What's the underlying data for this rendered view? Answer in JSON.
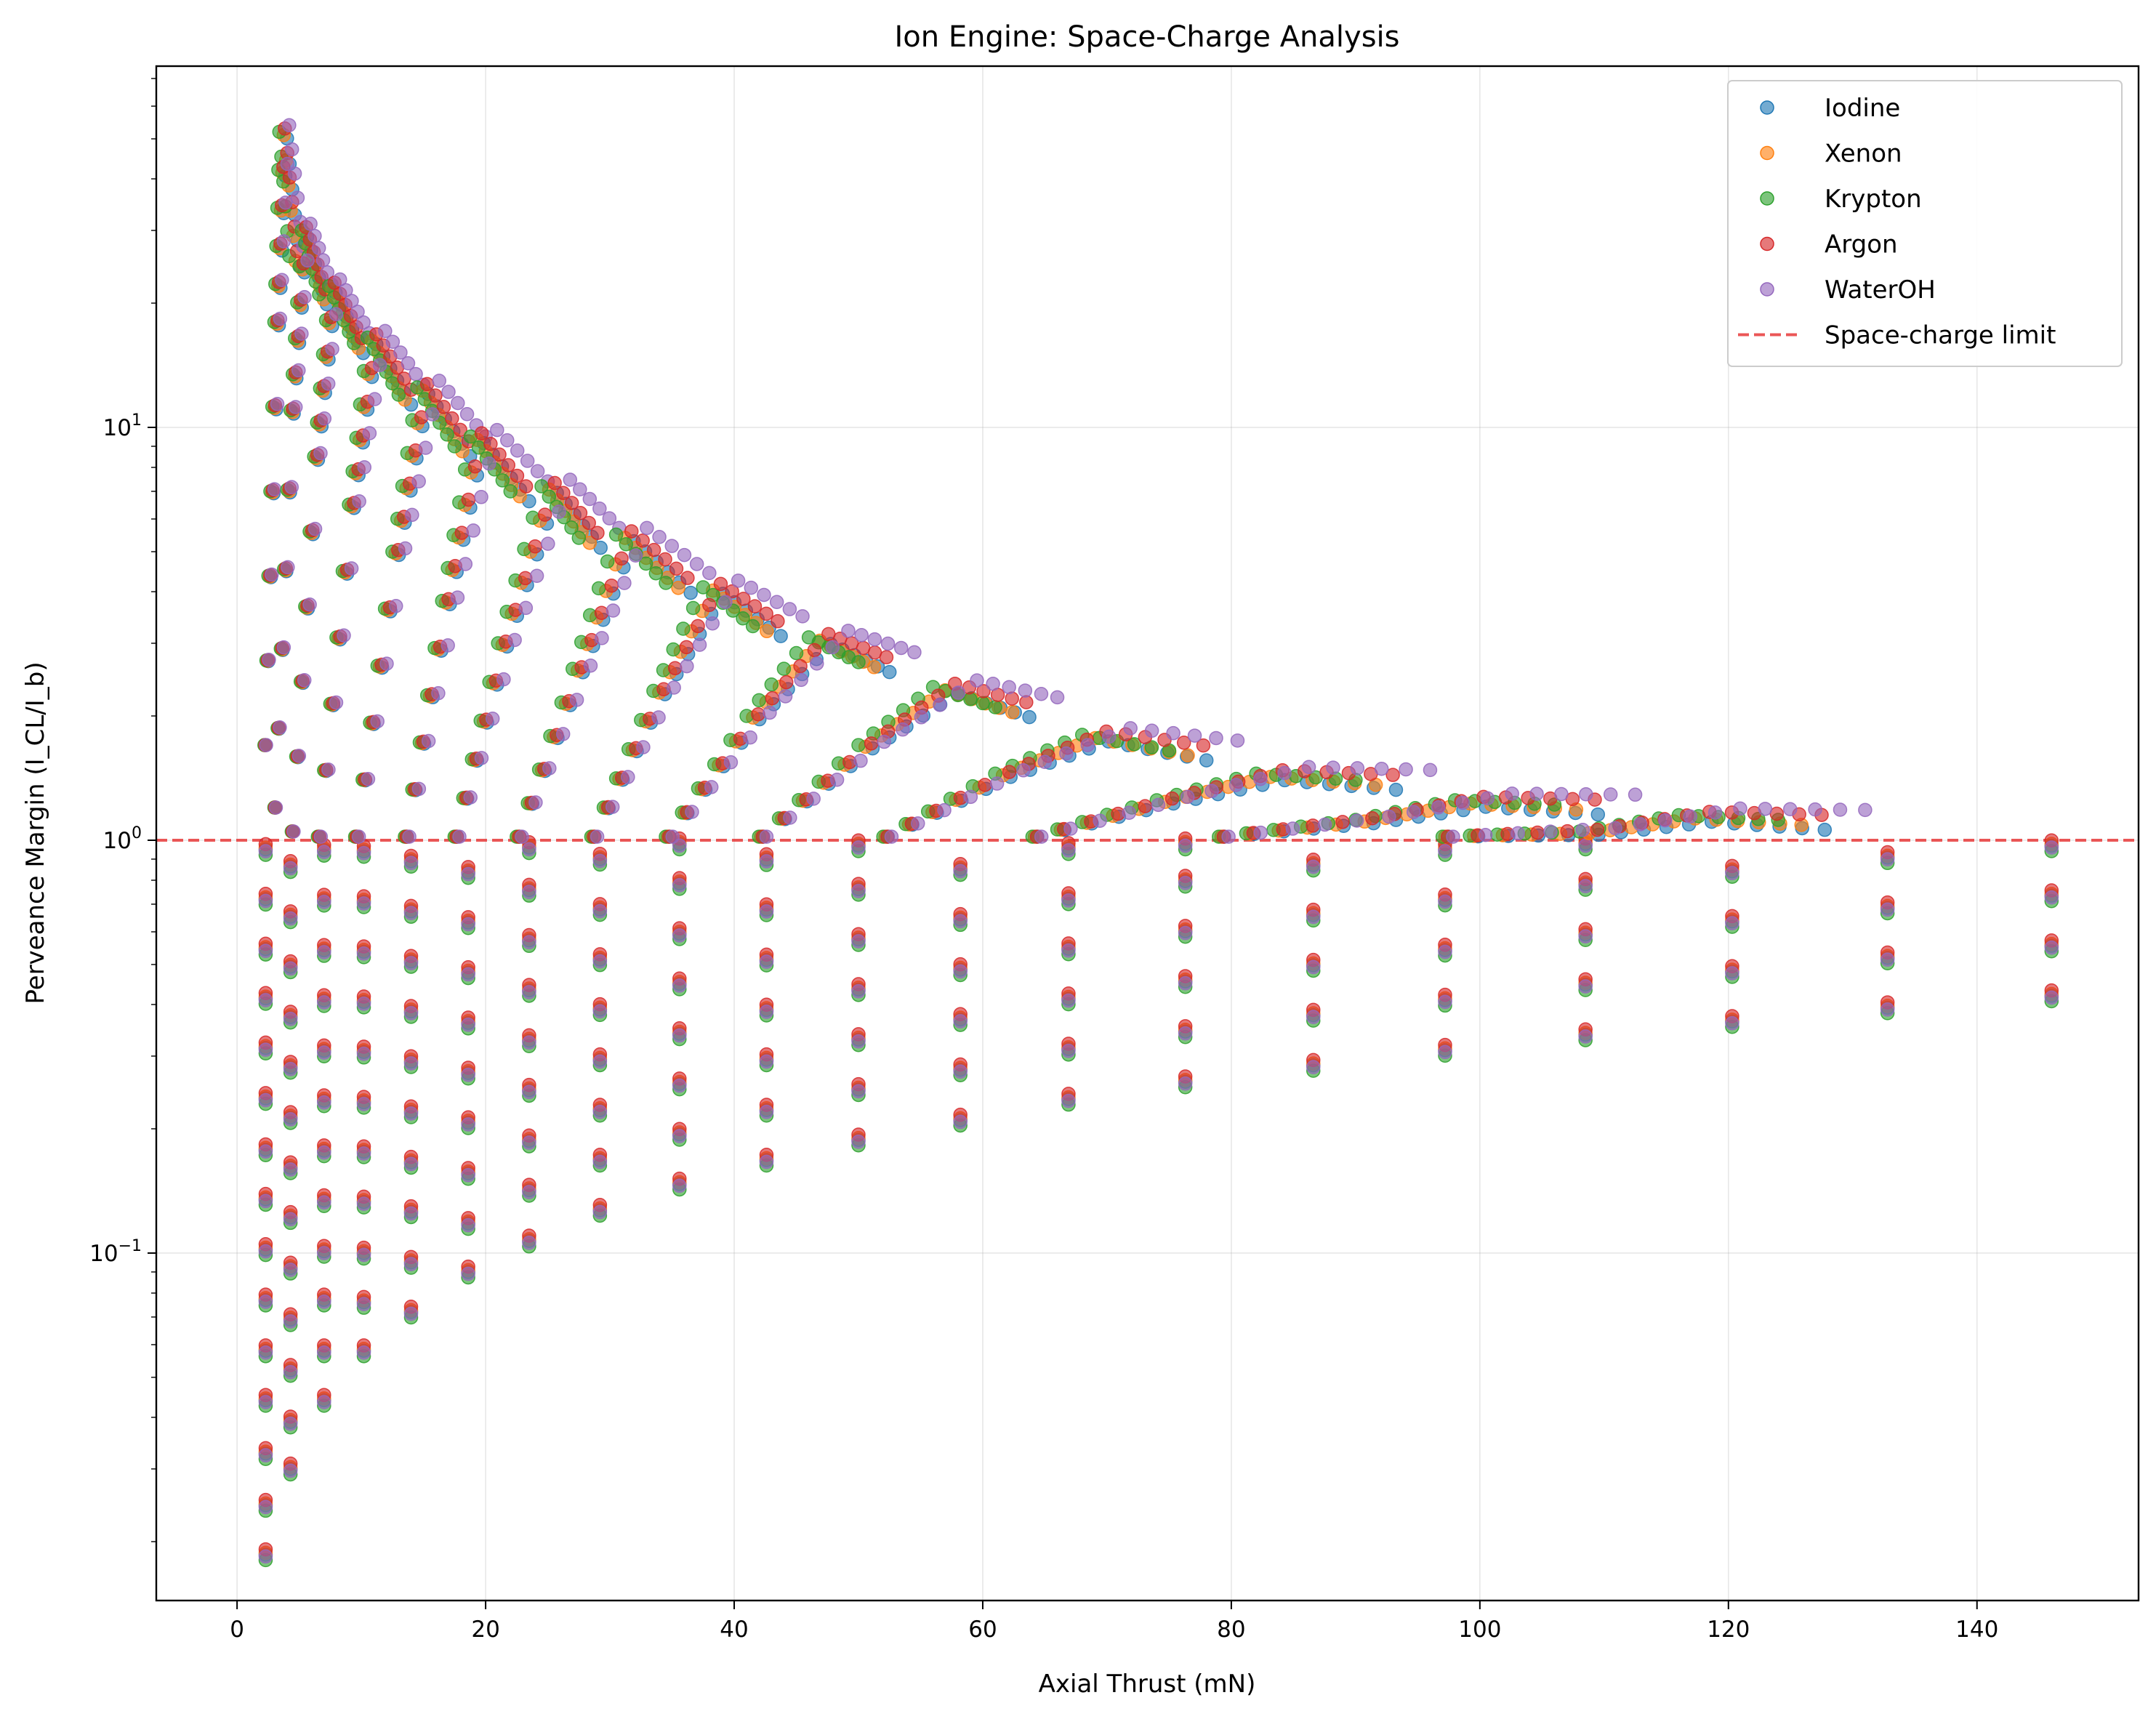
{
  "chart_data": {
    "type": "scatter",
    "title": "Ion Engine: Space-Charge Analysis",
    "xlabel": "Axial Thrust (mN)",
    "ylabel": "Perveance Margin (I_CL/I_b)",
    "xlim": [
      -6.5,
      153
    ],
    "ylim": [
      0.0144,
      75
    ],
    "yscale": "log",
    "grid": true,
    "legend_position": "top-right",
    "x_ticks": [
      0,
      20,
      40,
      60,
      80,
      100,
      120,
      140
    ],
    "y_ticks": [
      {
        "value": 0.1,
        "base": "10",
        "exp": "−1"
      },
      {
        "value": 1,
        "base": "10",
        "exp": "0"
      },
      {
        "value": 10,
        "base": "10",
        "exp": "1"
      }
    ],
    "reference_line": {
      "name": "Space-charge limit",
      "y": 1.0,
      "color": "#e8393a",
      "style": "dashed"
    },
    "series": [
      {
        "name": "Iodine",
        "color": "#1f77b4"
      },
      {
        "name": "Xenon",
        "color": "#ff7f0e"
      },
      {
        "name": "Krypton",
        "color": "#2ca02c"
      },
      {
        "name": "Argon",
        "color": "#d62728"
      },
      {
        "name": "WaterOH",
        "color": "#9467bd"
      }
    ],
    "thrust_columns": [
      2.3,
      4.3,
      7.0,
      10.2,
      14.0,
      18.6,
      23.5,
      29.2,
      35.6,
      42.6,
      50.0,
      58.2,
      66.9,
      76.3,
      86.6,
      97.2,
      108.5,
      120.3,
      132.8,
      146.0
    ],
    "columns": [
      {
        "x": 2.3,
        "y": [
          0.0186,
          0.0245,
          0.0327,
          0.044,
          0.058,
          0.077,
          0.102,
          0.135,
          0.178,
          0.237,
          0.314,
          0.414,
          0.545,
          0.72,
          0.95
        ]
      },
      {
        "x": 4.3,
        "y": [
          0.03,
          0.039,
          0.052,
          0.069,
          0.092,
          0.122,
          0.161,
          0.213,
          0.282,
          0.373,
          0.494,
          0.653,
          0.864
        ]
      },
      {
        "x": 7.0,
        "y": [
          0.044,
          0.058,
          0.077,
          0.101,
          0.134,
          0.177,
          0.234,
          0.309,
          0.409,
          0.541,
          0.716,
          0.946
        ]
      },
      {
        "x": 10.2,
        "y": [
          0.058,
          0.076,
          0.1,
          0.133,
          0.176,
          0.232,
          0.307,
          0.406,
          0.537,
          0.71,
          0.94
        ]
      },
      {
        "x": 14.0,
        "y": [
          0.072,
          0.095,
          0.126,
          0.166,
          0.22,
          0.291,
          0.385,
          0.509,
          0.673,
          0.89
        ]
      },
      {
        "x": 18.6,
        "y": [
          0.09,
          0.118,
          0.156,
          0.207,
          0.273,
          0.361,
          0.478,
          0.632,
          0.836
        ]
      },
      {
        "x": 23.5,
        "y": [
          0.107,
          0.142,
          0.187,
          0.248,
          0.327,
          0.433,
          0.572,
          0.757,
          0.96
        ]
      },
      {
        "x": 29.2,
        "y": [
          0.127,
          0.168,
          0.222,
          0.294,
          0.389,
          0.514,
          0.68,
          0.9
        ]
      },
      {
        "x": 35.6,
        "y": [
          0.147,
          0.194,
          0.257,
          0.34,
          0.449,
          0.594,
          0.786,
          0.98
        ]
      },
      {
        "x": 42.6,
        "y": [
          0.168,
          0.222,
          0.294,
          0.388,
          0.513,
          0.679,
          0.898
        ]
      },
      {
        "x": 50.0,
        "y": [
          0.188,
          0.249,
          0.329,
          0.435,
          0.575,
          0.761,
          0.97
        ]
      },
      {
        "x": 58.2,
        "y": [
          0.21,
          0.278,
          0.368,
          0.486,
          0.643,
          0.85
        ]
      },
      {
        "x": 66.9,
        "y": [
          0.236,
          0.312,
          0.413,
          0.546,
          0.722,
          0.955
        ]
      },
      {
        "x": 76.3,
        "y": [
          0.26,
          0.344,
          0.455,
          0.602,
          0.796,
          0.98
        ]
      },
      {
        "x": 86.6,
        "y": [
          0.285,
          0.377,
          0.498,
          0.659,
          0.871
        ]
      },
      {
        "x": 97.2,
        "y": [
          0.31,
          0.41,
          0.542,
          0.717,
          0.95
        ]
      },
      {
        "x": 108.5,
        "y": [
          0.338,
          0.447,
          0.591,
          0.782,
          0.98
        ]
      },
      {
        "x": 120.3,
        "y": [
          0.364,
          0.481,
          0.636,
          0.841
        ]
      },
      {
        "x": 132.8,
        "y": [
          0.393,
          0.519,
          0.686,
          0.908
        ]
      },
      {
        "x": 146.0,
        "y": [
          0.42,
          0.555,
          0.734,
          0.97
        ]
      }
    ],
    "arcs": [
      {
        "x": [
          2.2,
          3.0,
          3.4,
          4.2
        ],
        "y": [
          1.7,
          18.0,
          52.0,
          26.0
        ],
        "x_step": [
          0.35,
          0.2,
          0,
          0.25,
          0.45
        ]
      },
      {
        "x": [
          3.0,
          4.3,
          5.2,
          6.6
        ],
        "y": [
          1.2,
          11.0,
          30.0,
          21.0
        ],
        "x_step": [
          0.25,
          0.15,
          0,
          0.2,
          0.4
        ]
      },
      {
        "x": [
          4.4,
          6.2,
          7.4,
          9.4
        ],
        "y": [
          1.05,
          8.5,
          22.0,
          16.0
        ],
        "x_step": [
          0.3,
          0.15,
          0,
          0.25,
          0.5
        ]
      },
      {
        "x": [
          6.5,
          9.0,
          10.5,
          13.0
        ],
        "y": [
          1.02,
          6.5,
          16.5,
          12.0
        ],
        "x_step": [
          0.4,
          0.2,
          0,
          0.4,
          0.8
        ]
      },
      {
        "x": [
          9.5,
          12.5,
          14.5,
          17.5
        ],
        "y": [
          1.02,
          5.0,
          12.5,
          9.0
        ],
        "x_step": [
          0.5,
          0.25,
          0,
          0.45,
          1.0
        ]
      },
      {
        "x": [
          13.5,
          16.5,
          18.8,
          22.0
        ],
        "y": [
          1.02,
          3.8,
          9.5,
          7.0
        ],
        "x_step": [
          0.6,
          0.3,
          0,
          0.5,
          1.2
        ]
      },
      {
        "x": [
          17.5,
          21.0,
          24.5,
          27.5
        ],
        "y": [
          1.02,
          3.0,
          7.2,
          5.4
        ],
        "x_step": [
          0.7,
          0.35,
          0,
          0.6,
          1.3
        ]
      },
      {
        "x": [
          22.5,
          27.0,
          30.5,
          34.5
        ],
        "y": [
          1.02,
          2.6,
          5.5,
          4.2
        ],
        "x_step": [
          0.8,
          0.4,
          0,
          0.7,
          1.4
        ]
      },
      {
        "x": [
          28.5,
          33.5,
          37.5,
          41.5
        ],
        "y": [
          1.02,
          2.3,
          4.1,
          3.3
        ],
        "x_step": [
          0.9,
          0.45,
          0,
          0.8,
          1.6
        ]
      },
      {
        "x": [
          34.5,
          41.0,
          46.0,
          50.0
        ],
        "y": [
          1.02,
          2.0,
          3.1,
          2.7
        ],
        "x_step": [
          1.0,
          0.5,
          0,
          0.9,
          1.8
        ]
      },
      {
        "x": [
          42.0,
          50.0,
          56.0,
          61.0
        ],
        "y": [
          1.02,
          1.7,
          2.35,
          2.1
        ],
        "x_step": [
          1.1,
          0.55,
          0,
          1.0,
          2.0
        ]
      },
      {
        "x": [
          52.0,
          61.0,
          68.0,
          75.0
        ],
        "y": [
          1.02,
          1.45,
          1.8,
          1.65
        ],
        "x_step": [
          1.2,
          0.6,
          0,
          1.1,
          2.2
        ]
      },
      {
        "x": [
          64.0,
          74.0,
          82.0,
          90.0
        ],
        "y": [
          1.02,
          1.25,
          1.45,
          1.4
        ],
        "x_step": [
          1.3,
          0.65,
          0,
          1.2,
          2.4
        ]
      },
      {
        "x": [
          79.0,
          90.0,
          98.0,
          106.0
        ],
        "y": [
          1.02,
          1.12,
          1.25,
          1.22
        ],
        "x_step": [
          1.4,
          0.7,
          0,
          1.3,
          2.6
        ]
      },
      {
        "x": [
          97.0,
          108.0,
          116.0,
          124.0
        ],
        "y": [
          1.02,
          1.05,
          1.15,
          1.12
        ],
        "x_step": [
          1.5,
          0.75,
          0,
          1.4,
          2.8
        ]
      }
    ]
  }
}
